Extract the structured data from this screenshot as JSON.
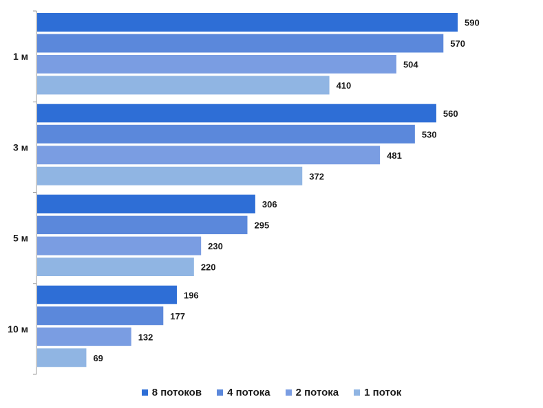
{
  "chart_data": {
    "type": "bar",
    "orientation": "horizontal",
    "categories": [
      "1 м",
      "3 м",
      "5 м",
      "10 м"
    ],
    "series": [
      {
        "name": "8 потоков",
        "color": "#2e6ed6",
        "values": [
          590,
          560,
          306,
          196
        ]
      },
      {
        "name": "4 потока",
        "color": "#5b88db",
        "values": [
          570,
          530,
          295,
          177
        ]
      },
      {
        "name": "2 потока",
        "color": "#7a9de2",
        "values": [
          504,
          481,
          230,
          132
        ]
      },
      {
        "name": "1 поток",
        "color": "#90b5e3",
        "values": [
          410,
          372,
          220,
          69
        ]
      }
    ],
    "data_labels": true,
    "grid": false,
    "legend_position": "bottom"
  }
}
